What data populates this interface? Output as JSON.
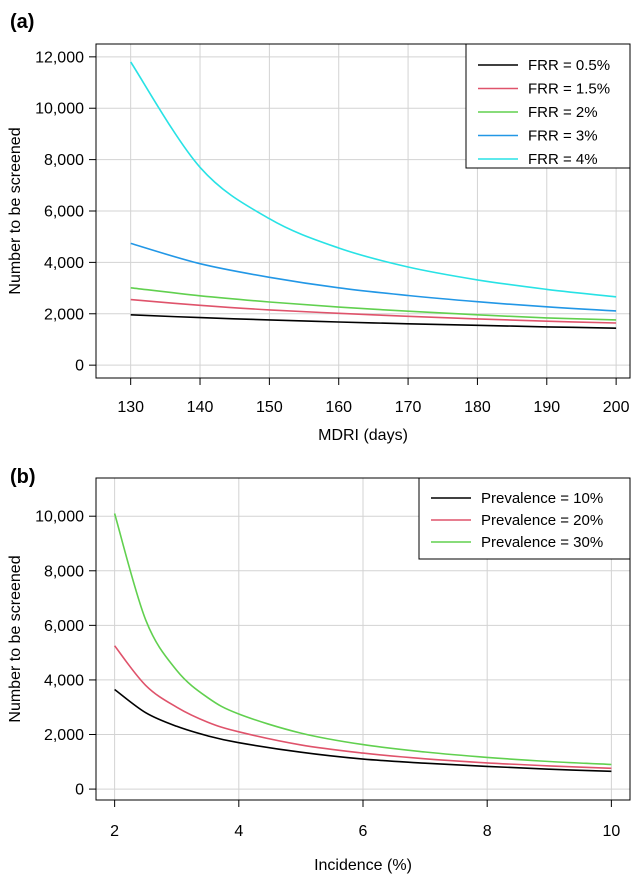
{
  "chart_data": [
    {
      "panel": "(a)",
      "type": "line",
      "xlabel": "MDRI (days)",
      "ylabel": "Number to be screened",
      "xlim": [
        125,
        202
      ],
      "ylim": [
        -500,
        12500
      ],
      "xticks": [
        "130",
        "140",
        "150",
        "160",
        "170",
        "180",
        "190",
        "200"
      ],
      "yticks": [
        "0",
        "2,000",
        "4,000",
        "6,000",
        "8,000",
        "10,000",
        "12,000"
      ],
      "x": [
        130,
        140,
        150,
        160,
        170,
        180,
        190,
        200
      ],
      "grid": true,
      "legend_position": "top-right",
      "series": [
        {
          "name": "FRR = 0.5%",
          "color": "#000000",
          "values": [
            1960,
            1850,
            1760,
            1680,
            1610,
            1550,
            1490,
            1440
          ]
        },
        {
          "name": "FRR = 1.5%",
          "color": "#DF536B",
          "values": [
            2550,
            2330,
            2150,
            2020,
            1900,
            1800,
            1710,
            1640
          ]
        },
        {
          "name": "FRR = 2%",
          "color": "#61D04F",
          "values": [
            3010,
            2700,
            2460,
            2260,
            2100,
            1960,
            1840,
            1760
          ]
        },
        {
          "name": "FRR = 3%",
          "color": "#2297E6",
          "values": [
            4740,
            3950,
            3420,
            3010,
            2710,
            2470,
            2270,
            2110
          ]
        },
        {
          "name": "FRR = 4%",
          "color": "#28E2E5",
          "values": [
            11800,
            7700,
            5700,
            4560,
            3820,
            3320,
            2950,
            2660
          ]
        }
      ]
    },
    {
      "panel": "(b)",
      "type": "line",
      "xlabel": "Incidence (%)",
      "ylabel": "Number to be screened",
      "xlim": [
        1.7,
        10.3
      ],
      "ylim": [
        -400,
        11400
      ],
      "xticks": [
        "2",
        "4",
        "6",
        "8",
        "10"
      ],
      "yticks": [
        "0",
        "2,000",
        "4,000",
        "6,000",
        "8,000",
        "10,000"
      ],
      "x": [
        2,
        2.5,
        3,
        3.5,
        4,
        5,
        6,
        7,
        8,
        9,
        10
      ],
      "grid": true,
      "legend_position": "top-right",
      "series": [
        {
          "name": "Prevalence = 10%",
          "color": "#000000",
          "values": [
            3650,
            2800,
            2300,
            1950,
            1700,
            1350,
            1100,
            950,
            830,
            730,
            650
          ]
        },
        {
          "name": "Prevalence = 20%",
          "color": "#DF536B",
          "values": [
            5250,
            3800,
            3000,
            2450,
            2100,
            1620,
            1320,
            1110,
            960,
            850,
            760
          ]
        },
        {
          "name": "Prevalence = 30%",
          "color": "#61D04F",
          "values": [
            10100,
            6200,
            4350,
            3350,
            2750,
            2050,
            1630,
            1360,
            1160,
            1010,
            900
          ]
        }
      ]
    }
  ]
}
